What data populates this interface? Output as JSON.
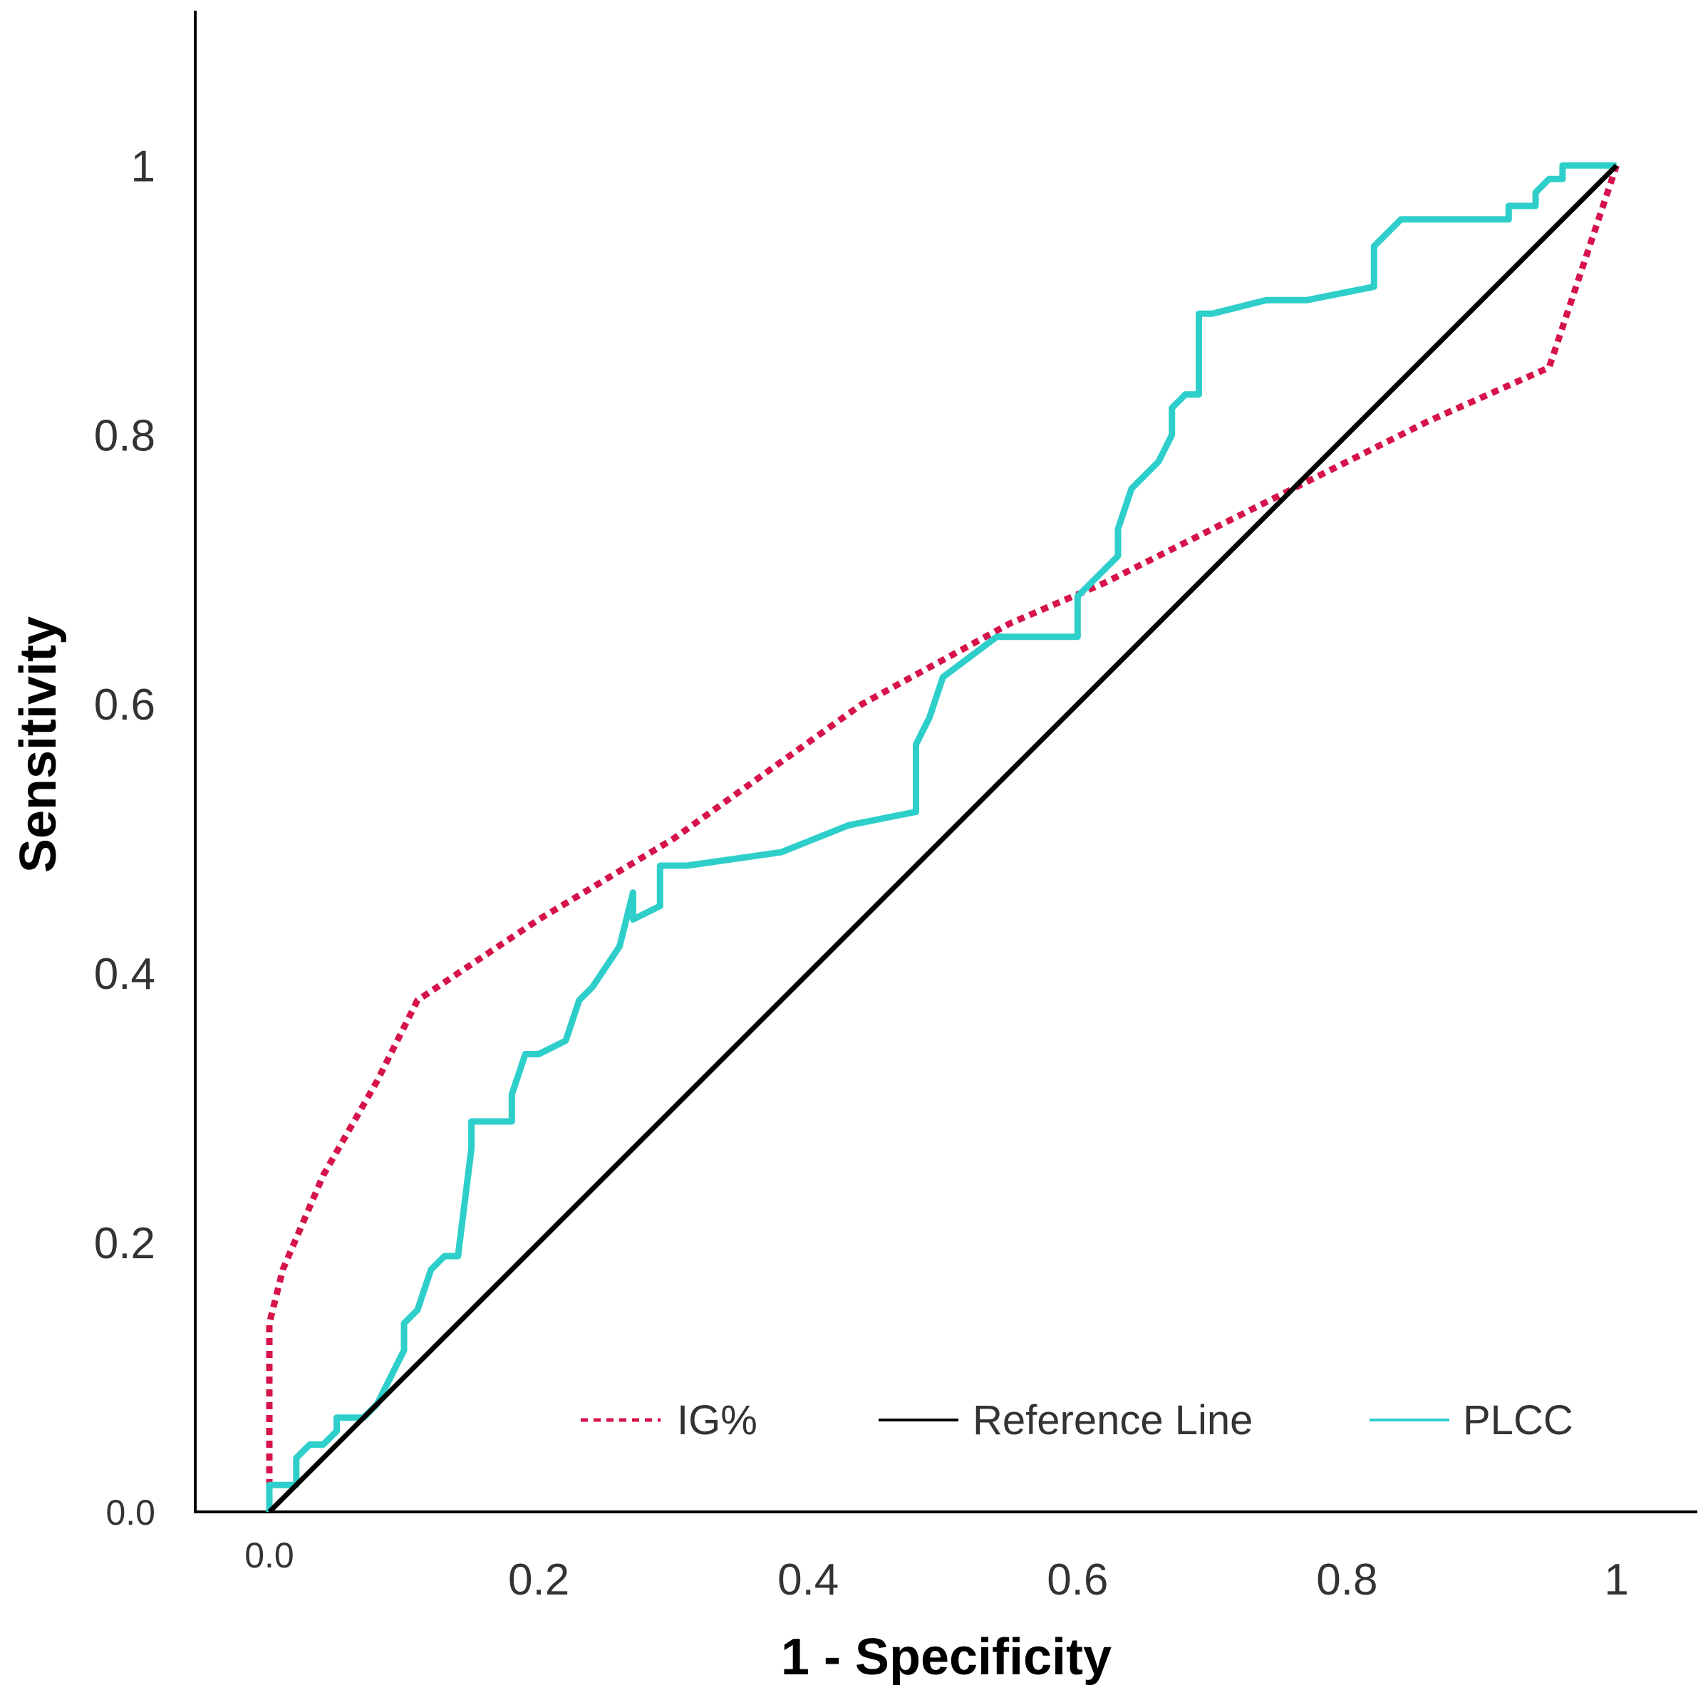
{
  "chart_data": {
    "type": "line",
    "xlabel": "1 - Specificity",
    "ylabel": "Sensitivity",
    "xlim": [
      -0.055,
      1.06
    ],
    "ylim": [
      0,
      1.115
    ],
    "x_ticks": [
      {
        "value": 0,
        "label": "0.0"
      },
      {
        "value": 0.2,
        "label": "0.2"
      },
      {
        "value": 0.4,
        "label": "0.4"
      },
      {
        "value": 0.6,
        "label": "0.6"
      },
      {
        "value": 0.8,
        "label": "0.8"
      },
      {
        "value": 1,
        "label": "1"
      }
    ],
    "y_ticks": [
      {
        "value": 0,
        "label": "0.0"
      },
      {
        "value": 0.2,
        "label": "0.2"
      },
      {
        "value": 0.4,
        "label": "0.4"
      },
      {
        "value": 0.6,
        "label": "0.6"
      },
      {
        "value": 0.8,
        "label": "0.8"
      },
      {
        "value": 1,
        "label": "1"
      }
    ],
    "grid": false,
    "legend_position": "bottom-right",
    "series": [
      {
        "name": "IG%",
        "color": "#d6134a",
        "style": "dotted",
        "x": [
          0,
          0,
          0.01,
          0.04,
          0.08,
          0.11,
          0.2,
          0.3,
          0.44,
          0.55,
          0.62,
          0.68,
          0.76,
          0.86,
          0.95,
          1.0
        ],
        "y": [
          0,
          0.14,
          0.18,
          0.25,
          0.32,
          0.38,
          0.44,
          0.5,
          0.6,
          0.66,
          0.69,
          0.72,
          0.76,
          0.81,
          0.85,
          1.0
        ]
      },
      {
        "name": "Reference Line",
        "color": "#000000",
        "style": "solid",
        "x": [
          0,
          1
        ],
        "y": [
          0,
          1
        ]
      },
      {
        "name": "PLCC",
        "color": "#2ecfcb",
        "style": "solid",
        "x": [
          0,
          0,
          0.01,
          0.02,
          0.02,
          0.03,
          0.04,
          0.05,
          0.05,
          0.07,
          0.08,
          0.1,
          0.1,
          0.11,
          0.12,
          0.13,
          0.14,
          0.15,
          0.15,
          0.16,
          0.18,
          0.18,
          0.19,
          0.2,
          0.22,
          0.23,
          0.24,
          0.26,
          0.27,
          0.27,
          0.29,
          0.29,
          0.31,
          0.38,
          0.43,
          0.48,
          0.48,
          0.49,
          0.5,
          0.54,
          0.6,
          0.6,
          0.63,
          0.63,
          0.64,
          0.66,
          0.67,
          0.67,
          0.68,
          0.69,
          0.69,
          0.7,
          0.74,
          0.77,
          0.82,
          0.82,
          0.84,
          0.85,
          0.92,
          0.92,
          0.94,
          0.94,
          0.95,
          0.96,
          0.96,
          1.0
        ],
        "y": [
          0,
          0.02,
          0.02,
          0.02,
          0.04,
          0.05,
          0.05,
          0.06,
          0.07,
          0.07,
          0.08,
          0.12,
          0.14,
          0.15,
          0.18,
          0.19,
          0.19,
          0.27,
          0.29,
          0.29,
          0.29,
          0.31,
          0.34,
          0.34,
          0.35,
          0.38,
          0.39,
          0.42,
          0.46,
          0.44,
          0.45,
          0.48,
          0.48,
          0.49,
          0.51,
          0.52,
          0.57,
          0.59,
          0.62,
          0.65,
          0.65,
          0.68,
          0.71,
          0.73,
          0.76,
          0.78,
          0.8,
          0.82,
          0.83,
          0.83,
          0.89,
          0.89,
          0.9,
          0.9,
          0.91,
          0.94,
          0.96,
          0.96,
          0.96,
          0.97,
          0.97,
          0.98,
          0.99,
          0.99,
          1.0,
          1.0
        ]
      }
    ]
  }
}
